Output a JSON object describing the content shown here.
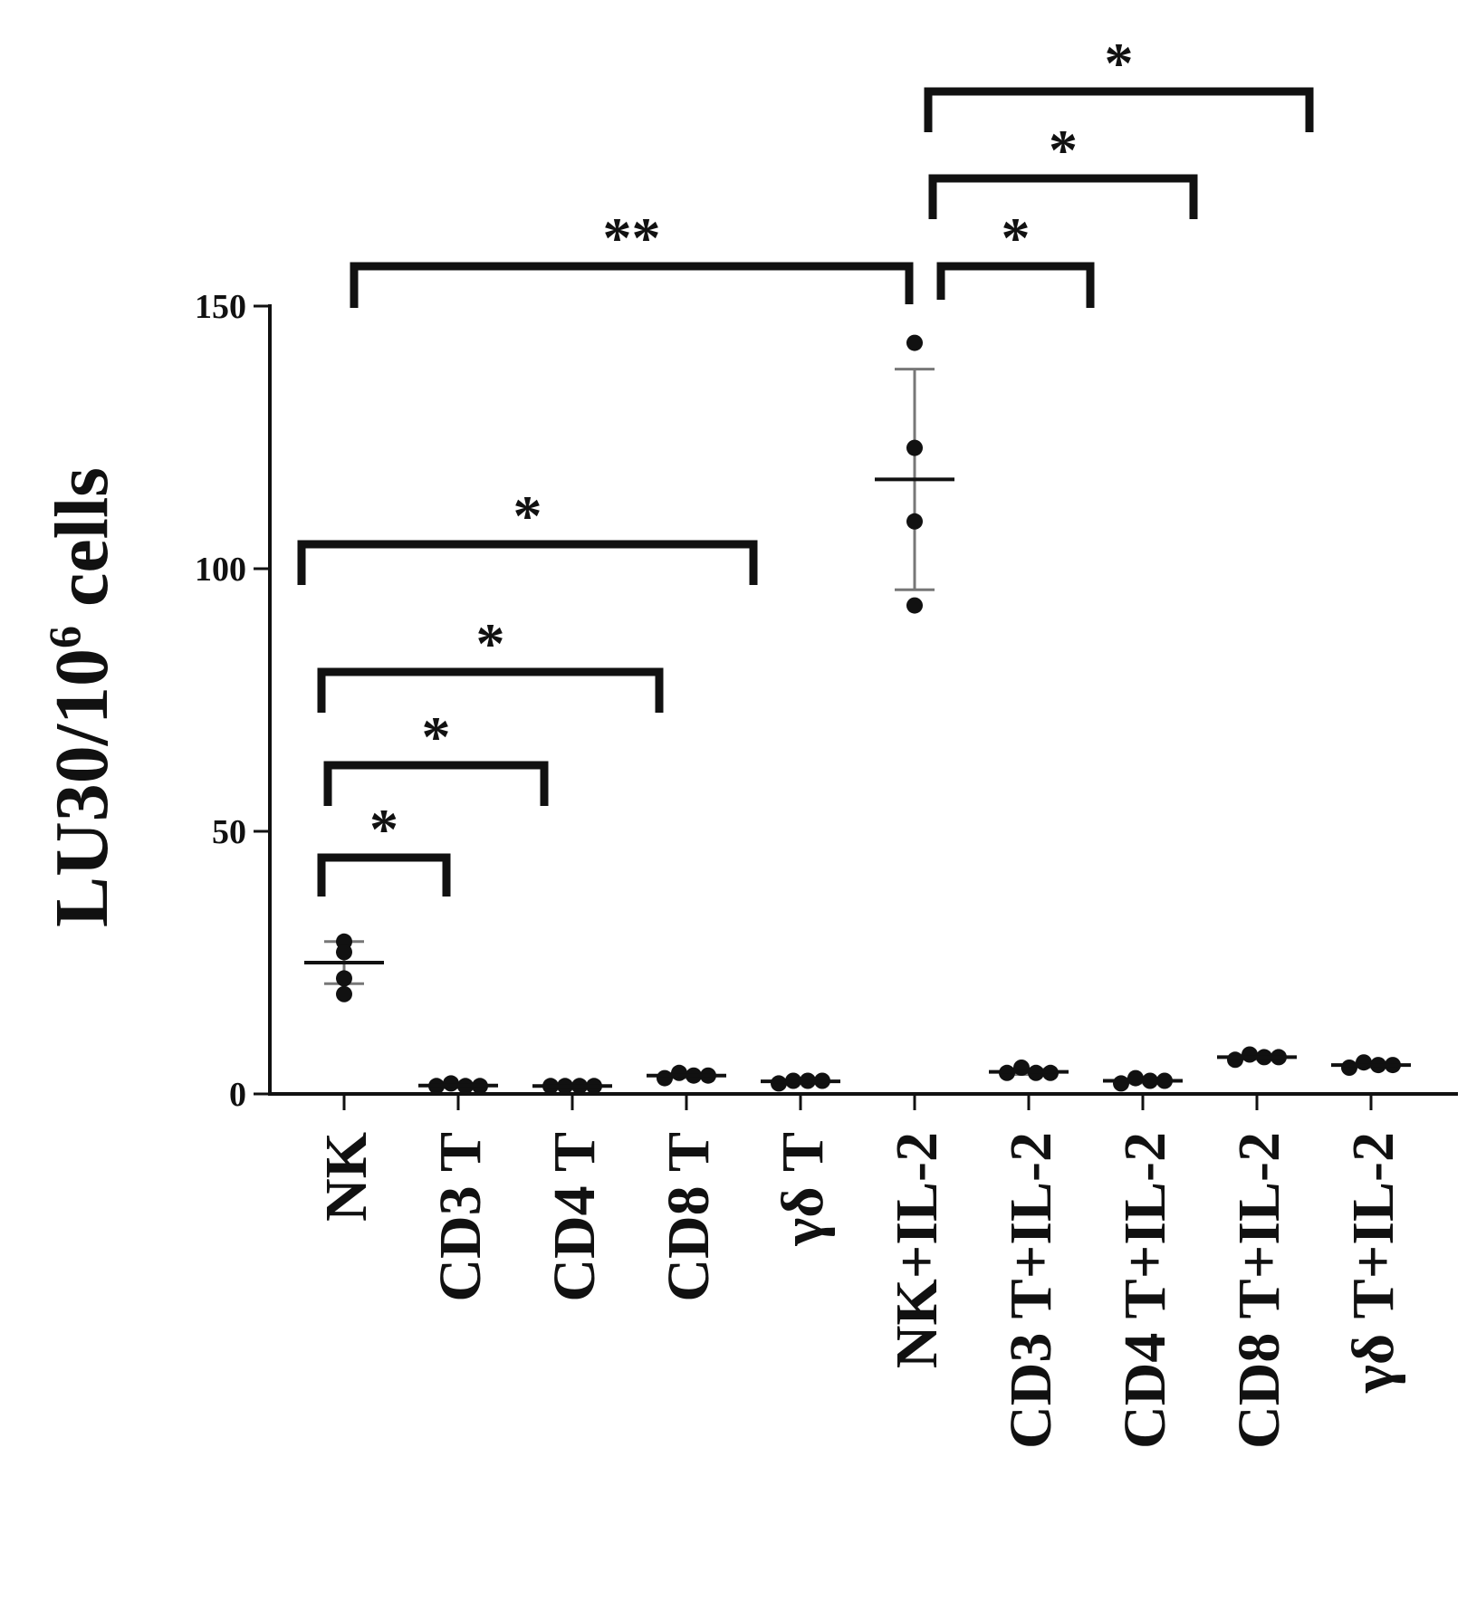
{
  "chart_data": {
    "type": "scatter",
    "ylabel": "LU30/10",
    "ylabel_superscript": "6",
    "ylabel_suffix": " cells",
    "ylim": [
      0,
      150
    ],
    "yticks": [
      0,
      50,
      100,
      150
    ],
    "categories": [
      "NK",
      "CD3 T",
      "CD4 T",
      "CD8 T",
      "γδ T",
      "NK+IL-2",
      "CD3 T+IL-2",
      "CD4 T+IL-2",
      "CD8 T+IL-2",
      "γδ T+IL-2"
    ],
    "groups": [
      {
        "category": "NK",
        "points": [
          29,
          27,
          22,
          19
        ],
        "mean": 25,
        "sd": 4
      },
      {
        "category": "CD3 T",
        "points": [
          1.5,
          2,
          1.5,
          1.5
        ],
        "mean": 1.6,
        "sd": 0.4
      },
      {
        "category": "CD4 T",
        "points": [
          1.5,
          1.5,
          1.5,
          1.5
        ],
        "mean": 1.5,
        "sd": 0.2
      },
      {
        "category": "CD8 T",
        "points": [
          3,
          4,
          3.5,
          3.5
        ],
        "mean": 3.5,
        "sd": 0.4
      },
      {
        "category": "γδ T",
        "points": [
          2,
          2.5,
          2.5,
          2.5
        ],
        "mean": 2.4,
        "sd": 0.3
      },
      {
        "category": "NK+IL-2",
        "points": [
          143,
          123,
          109,
          93
        ],
        "mean": 117,
        "sd": 21
      },
      {
        "category": "CD3 T+IL-2",
        "points": [
          4,
          5,
          4,
          4
        ],
        "mean": 4.2,
        "sd": 0.5
      },
      {
        "category": "CD4 T+IL-2",
        "points": [
          2,
          3,
          2.5,
          2.5
        ],
        "mean": 2.5,
        "sd": 0.4
      },
      {
        "category": "CD8 T+IL-2",
        "points": [
          6.5,
          7.5,
          7,
          7
        ],
        "mean": 7,
        "sd": 0.4
      },
      {
        "category": "γδ T+IL-2",
        "points": [
          5,
          6,
          5.5,
          5.5
        ],
        "mean": 5.5,
        "sd": 0.4
      }
    ],
    "significance": [
      {
        "from": "NK",
        "to": "CD3 T",
        "label": "*"
      },
      {
        "from": "NK",
        "to": "CD4 T",
        "label": "*"
      },
      {
        "from": "NK",
        "to": "CD8 T",
        "label": "*"
      },
      {
        "from": "NK",
        "to": "γδ T",
        "label": "*"
      },
      {
        "from": "NK",
        "to": "NK+IL-2",
        "label": "**"
      },
      {
        "from": "NK+IL-2",
        "to": "CD3 T+IL-2",
        "label": "*"
      },
      {
        "from": "NK+IL-2",
        "to": "CD4 T+IL-2",
        "label": "*"
      },
      {
        "from": "NK+IL-2",
        "to": "CD8 T+IL-2",
        "label": "*"
      }
    ],
    "grid": false,
    "legend": "none"
  }
}
